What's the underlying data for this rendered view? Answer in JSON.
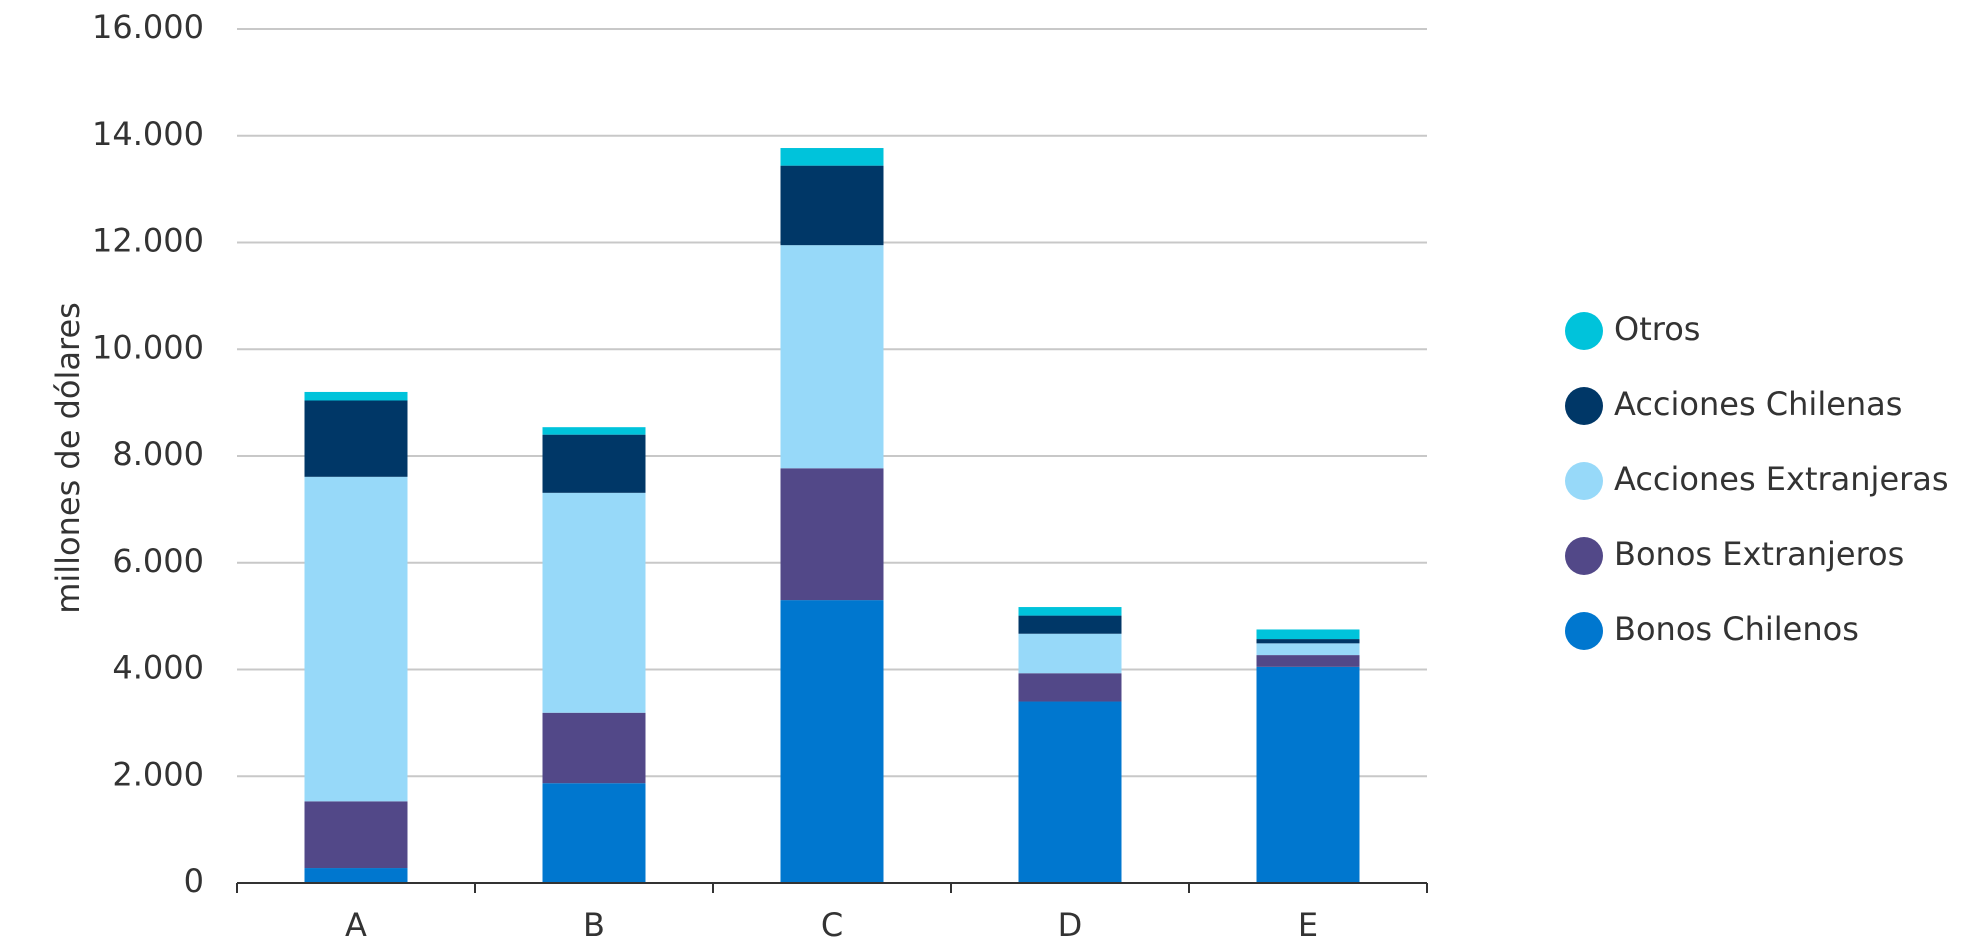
{
  "chart_data": {
    "type": "bar",
    "stacked": true,
    "ylabel": "millones de dólares",
    "ylim": [
      0,
      16000
    ],
    "yticks": [
      0,
      2000,
      4000,
      6000,
      8000,
      10000,
      12000,
      14000,
      16000
    ],
    "ytick_labels": [
      "0",
      "2.000",
      "4.000",
      "6.000",
      "8.000",
      "10.000",
      "12.000",
      "14.000",
      "16.000"
    ],
    "categories": [
      "A",
      "B",
      "C",
      "D",
      "E"
    ],
    "grid": true,
    "legend_position": "right",
    "series": [
      {
        "name": "Bonos Chilenos",
        "color": "#0077CF",
        "values": [
          280,
          1870,
          5300,
          3400,
          4050
        ]
      },
      {
        "name": "Bonos Extranjeros",
        "color": "#524888",
        "values": [
          1250,
          1320,
          2470,
          530,
          220
        ]
      },
      {
        "name": "Acciones Extranjeras",
        "color": "#97D9F9",
        "values": [
          6080,
          4120,
          4180,
          740,
          220
        ]
      },
      {
        "name": "Acciones Chilenas",
        "color": "#003767",
        "values": [
          1430,
          1090,
          1490,
          340,
          80
        ]
      },
      {
        "name": "Otros",
        "color": "#00C3DB",
        "values": [
          160,
          140,
          330,
          160,
          180
        ]
      }
    ],
    "legend_order": [
      "Otros",
      "Acciones Chilenas",
      "Acciones Extranjeras",
      "Bonos Extranjeros",
      "Bonos Chilenos"
    ]
  }
}
